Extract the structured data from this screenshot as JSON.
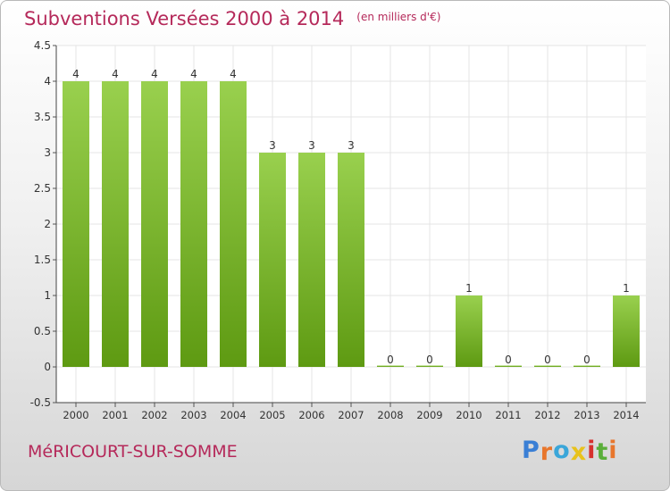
{
  "header": {
    "title": "Subventions Versées 2000 à 2014",
    "unit": "(en milliers d'€)"
  },
  "footer": {
    "commune": "MéRICOURT-SUR-SOMME",
    "logo_text": "Proxiti",
    "logo_colors": [
      "#3a7fd5",
      "#e8762c",
      "#3aa6d9",
      "#e8c21c",
      "#d6312e",
      "#5aae3a",
      "#e8762c"
    ]
  },
  "colors": {
    "bar_light": "#99d04e",
    "bar_dark": "#5e9a12",
    "accent": "#b5295a",
    "grid": "#e4e4e4"
  },
  "chart_data": {
    "type": "bar",
    "title": "Subventions Versées 2000 à 2014",
    "subtitle": "(en milliers d'€)",
    "categories": [
      "2000",
      "2001",
      "2002",
      "2003",
      "2004",
      "2005",
      "2006",
      "2007",
      "2008",
      "2009",
      "2010",
      "2011",
      "2012",
      "2013",
      "2014"
    ],
    "values": [
      4,
      4,
      4,
      4,
      4,
      3,
      3,
      3,
      0,
      0,
      1,
      0,
      0,
      0,
      1
    ],
    "data_labels": [
      "4",
      "4",
      "4",
      "4",
      "4",
      "3",
      "3",
      "3",
      "0",
      "0",
      "1",
      "0",
      "0",
      "0",
      "1"
    ],
    "ylim": [
      -0.5,
      4.5
    ],
    "yticks": [
      -0.5,
      0,
      0.5,
      1,
      1.5,
      2,
      2.5,
      3,
      3.5,
      4,
      4.5
    ],
    "ytick_labels": [
      "-0.5",
      "0",
      "0.5",
      "1",
      "1.5",
      "2",
      "2.5",
      "3",
      "3.5",
      "4",
      "4.5"
    ],
    "grid": true,
    "legend": "none"
  }
}
